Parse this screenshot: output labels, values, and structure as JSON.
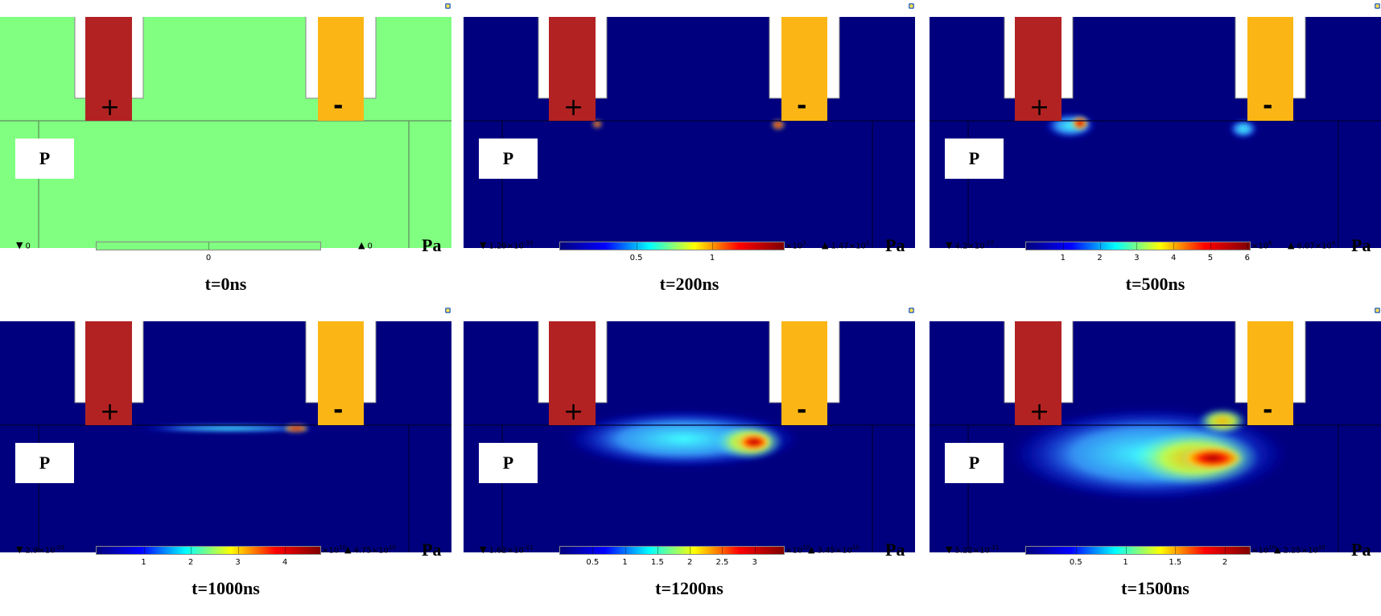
{
  "figure": {
    "unit": "Pa",
    "electrode_labels": {
      "anode": "+",
      "cathode": "-"
    },
    "region_label": "P",
    "colors": {
      "initial_background": "#80ff80",
      "low_background": "#00007f",
      "anode": "#b22222",
      "cathode": "#fbb616",
      "colormap": [
        "#00007f",
        "#0000ff",
        "#00ffff",
        "#ffff00",
        "#ff0000",
        "#7f0000"
      ]
    },
    "panels": [
      {
        "title": "t=0ns",
        "min_mantissa": "0",
        "min_exp": "",
        "max_mantissa": "0",
        "max_exp": "",
        "multiplier_base": "",
        "multiplier_exp": "",
        "range_max": 0,
        "ticks": [
          "0"
        ],
        "uniform": true
      },
      {
        "title": "t=200ns",
        "min_mantissa": "1.29×10",
        "min_exp": "-33",
        "max_mantissa": "1.47×10",
        "max_exp": "3",
        "multiplier_base": "×10",
        "multiplier_exp": "3",
        "range_max": 1.47,
        "ticks": [
          "0.5",
          "1"
        ]
      },
      {
        "title": "t=500ns",
        "min_mantissa": "4.2×10",
        "min_exp": "-27",
        "max_mantissa": "6.07×10",
        "max_exp": "6",
        "multiplier_base": "×10",
        "multiplier_exp": "6",
        "range_max": 6.07,
        "ticks": [
          "1",
          "2",
          "3",
          "4",
          "5",
          "6"
        ]
      },
      {
        "title": "t=1000ns",
        "min_mantissa": "2.9×10",
        "min_exp": "-23",
        "max_mantissa": "4.75×10",
        "max_exp": "10",
        "multiplier_base": "×10",
        "multiplier_exp": "10",
        "range_max": 4.75,
        "ticks": [
          "1",
          "2",
          "3",
          "4"
        ]
      },
      {
        "title": "t=1200ns",
        "min_mantissa": "1.62×10",
        "min_exp": "-21",
        "max_mantissa": "3.45×10",
        "max_exp": "10",
        "multiplier_base": "×10",
        "multiplier_exp": "10",
        "range_max": 3.45,
        "ticks": [
          "0.5",
          "1",
          "1.5",
          "2",
          "2.5",
          "3"
        ]
      },
      {
        "title": "t=1500ns",
        "min_mantissa": "5.22×10",
        "min_exp": "-21",
        "max_mantissa": "2.25×10",
        "max_exp": "10",
        "multiplier_base": "×10",
        "multiplier_exp": "10",
        "range_max": 2.25,
        "ticks": [
          "0.5",
          "1",
          "1.5",
          "2"
        ]
      }
    ]
  }
}
